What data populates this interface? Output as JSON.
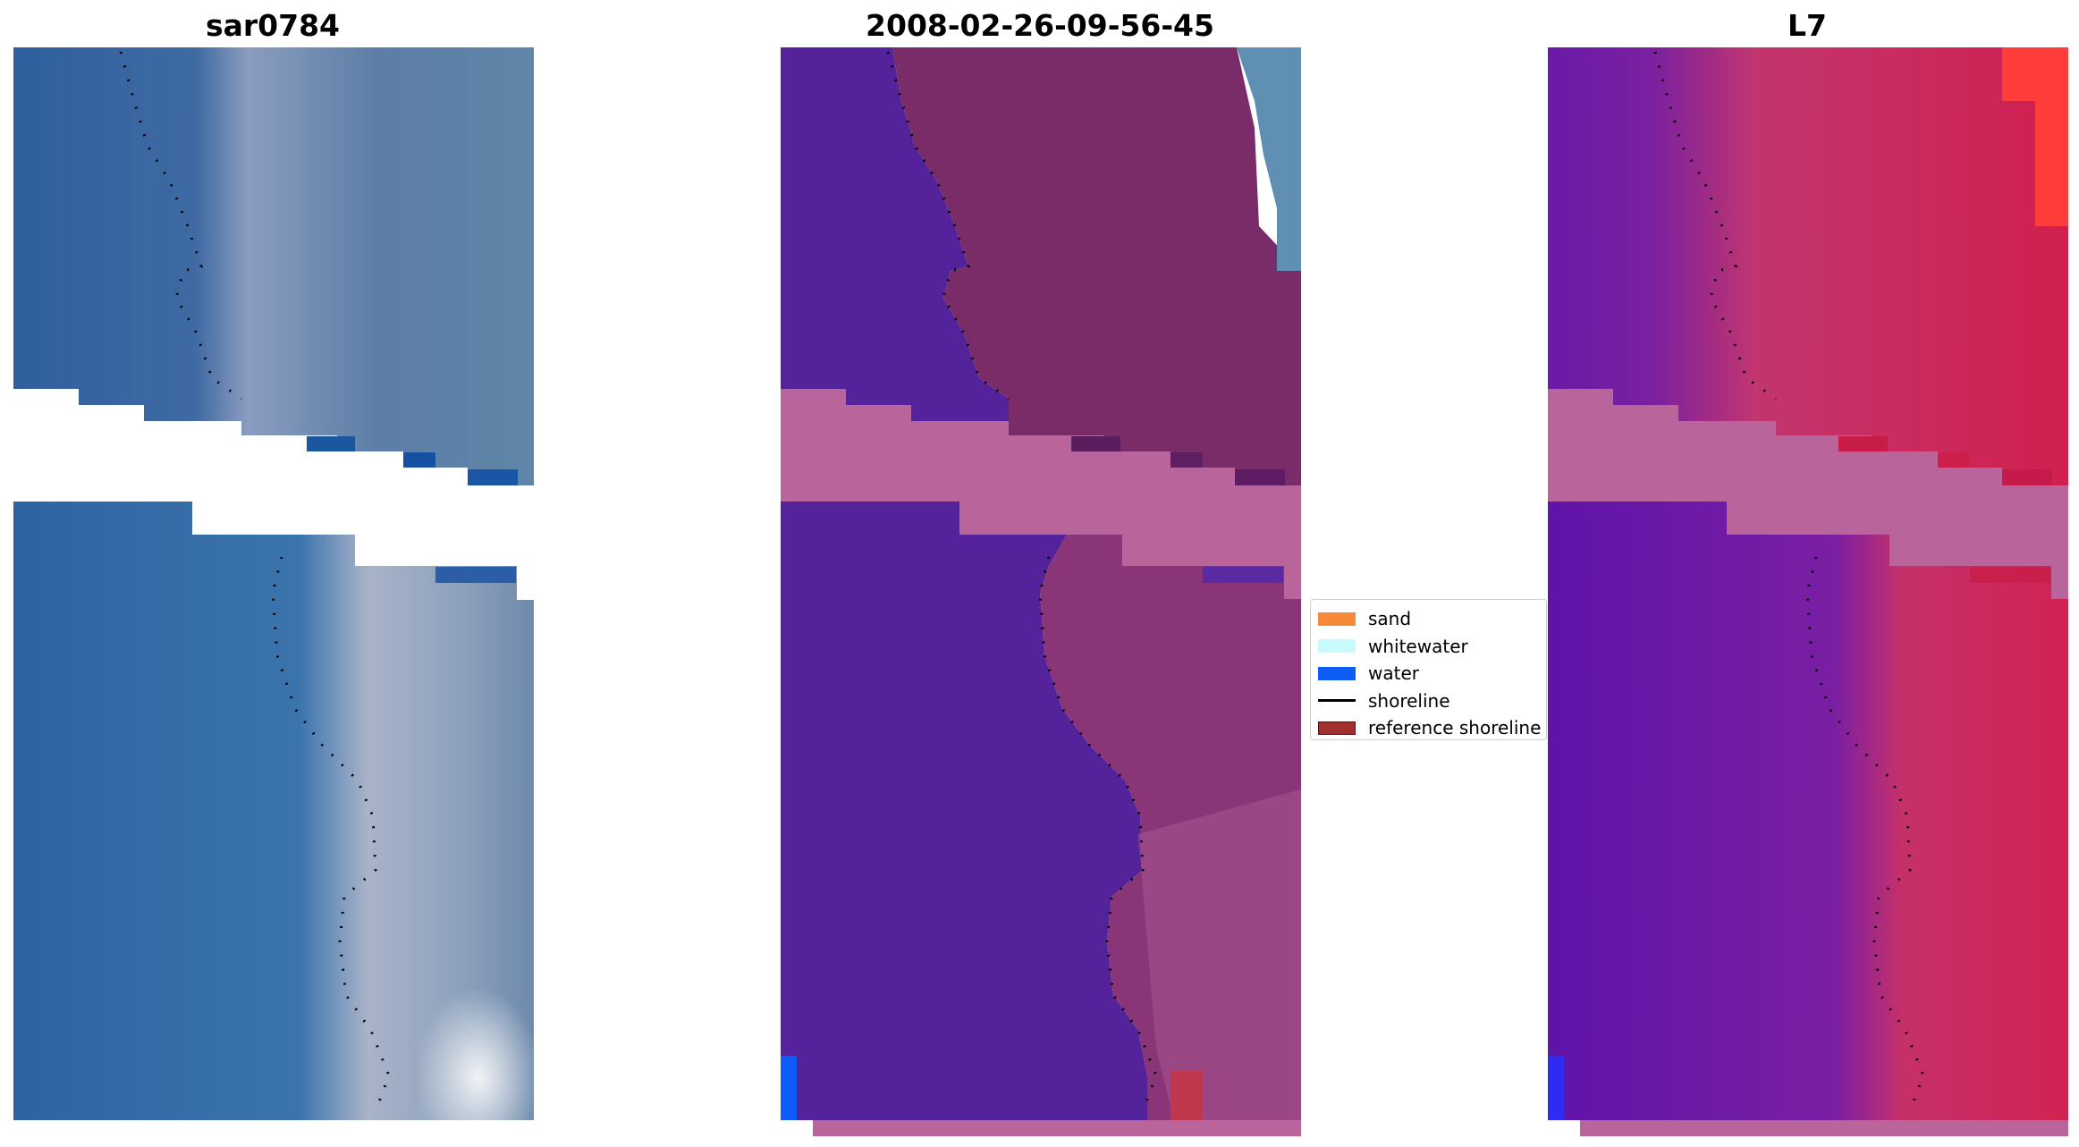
{
  "panels": {
    "left": {
      "title": "sar0784"
    },
    "middle": {
      "title": "2008-02-26-09-56-45"
    },
    "right": {
      "title": "L7"
    }
  },
  "legend": {
    "items": [
      {
        "label": "sand",
        "color": "#f58a3a",
        "kind": "patch"
      },
      {
        "label": "whitewater",
        "color": "#c8fbfb",
        "kind": "patch"
      },
      {
        "label": "water",
        "color": "#0d5cf5",
        "kind": "patch"
      },
      {
        "label": "shoreline",
        "color": "#000000",
        "kind": "line"
      },
      {
        "label": "reference shoreline",
        "color": "#a03030",
        "kind": "patch"
      }
    ]
  },
  "colors": {
    "rgb_water": "#3368a6",
    "rgb_land": "#7a93ae",
    "class_water": "#54229a",
    "class_land": "#7a2c68",
    "nodata": "#b9659c",
    "ndwi_water": "#6a1aa8",
    "ndwi_land": "#c8204e"
  }
}
